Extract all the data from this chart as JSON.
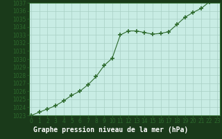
{
  "x": [
    0,
    1,
    2,
    3,
    4,
    5,
    6,
    7,
    8,
    9,
    10,
    11,
    12,
    13,
    14,
    15,
    16,
    17,
    18,
    19,
    20,
    21,
    22,
    23
  ],
  "y": [
    1023.0,
    1023.4,
    1023.8,
    1024.2,
    1024.8,
    1025.5,
    1026.0,
    1026.8,
    1027.8,
    1029.2,
    1030.1,
    1033.0,
    1033.5,
    1033.5,
    1033.3,
    1033.1,
    1033.2,
    1033.4,
    1034.3,
    1035.2,
    1035.8,
    1036.3,
    1037.1,
    1037.2
  ],
  "line_color": "#2d6a2d",
  "marker_color": "#2d6a2d",
  "bg_color": "#c8ece4",
  "grid_color": "#a8cfc4",
  "xlabel": "Graphe pression niveau de la mer (hPa)",
  "ylim_min": 1023,
  "ylim_max": 1037,
  "xlabel_color": "#ffffff",
  "xlabel_bg": "#2d5a2d",
  "border_color": "#2d6a2d",
  "outer_bg": "#1a3a1a",
  "bottom_label_color": "#ffffff",
  "label_fontsize": 7,
  "tick_fontsize": 5.5
}
